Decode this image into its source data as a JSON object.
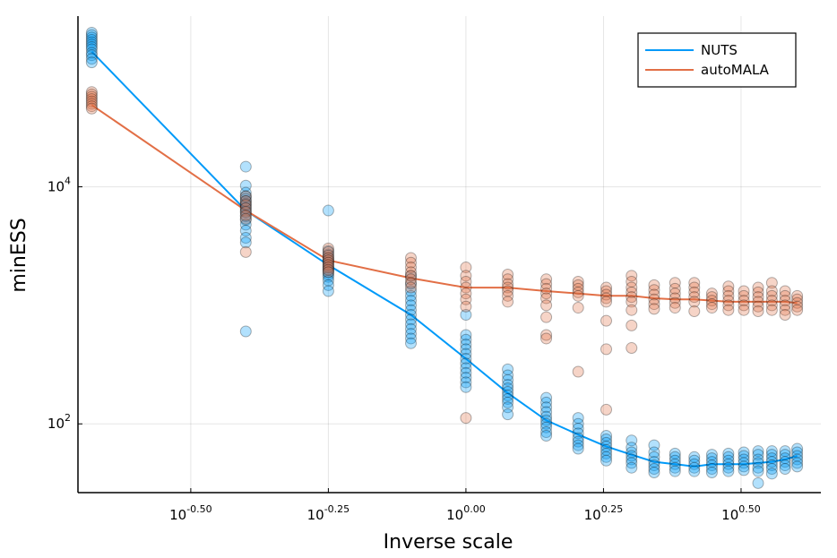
{
  "chart_data": {
    "type": "scatter",
    "title": "",
    "xlabel": "Inverse scale",
    "ylabel": "minESS",
    "xscale": "log10",
    "yscale": "log10",
    "xlim_log10": [
      -0.705,
      0.645
    ],
    "ylim_log10": [
      1.42,
      5.44
    ],
    "xticks": [
      {
        "exp": "-0.50",
        "base": "10",
        "log10": -0.5
      },
      {
        "exp": "-0.25",
        "base": "10",
        "log10": -0.25
      },
      {
        "exp": "0.00",
        "base": "10",
        "log10": 0.0
      },
      {
        "exp": "0.25",
        "base": "10",
        "log10": 0.25
      },
      {
        "exp": "0.50",
        "base": "10",
        "log10": 0.5
      }
    ],
    "yticks": [
      {
        "exp": "2",
        "base": "10",
        "log10": 2
      },
      {
        "exp": "4",
        "base": "10",
        "log10": 4
      }
    ],
    "grid": true,
    "legend_position": "top-right",
    "series": [
      {
        "name": "NUTS",
        "color": "#009af9",
        "line": [
          {
            "x": -0.68,
            "y": 5.14
          },
          {
            "x": -0.4,
            "y": 3.8
          },
          {
            "x": -0.25,
            "y": 3.34
          },
          {
            "x": -0.1,
            "y": 2.92
          },
          {
            "x": 0.0,
            "y": 2.55
          },
          {
            "x": 0.076,
            "y": 2.26
          },
          {
            "x": 0.146,
            "y": 2.03
          },
          {
            "x": 0.204,
            "y": 1.91
          },
          {
            "x": 0.255,
            "y": 1.81
          },
          {
            "x": 0.301,
            "y": 1.74
          },
          {
            "x": 0.342,
            "y": 1.68
          },
          {
            "x": 0.38,
            "y": 1.66
          },
          {
            "x": 0.415,
            "y": 1.64
          },
          {
            "x": 0.447,
            "y": 1.66
          },
          {
            "x": 0.477,
            "y": 1.66
          },
          {
            "x": 0.505,
            "y": 1.66
          },
          {
            "x": 0.531,
            "y": 1.67
          },
          {
            "x": 0.556,
            "y": 1.68
          },
          {
            "x": 0.58,
            "y": 1.7
          },
          {
            "x": 0.602,
            "y": 1.73
          }
        ],
        "scatter": [
          {
            "x": -0.68,
            "y": [
              5.3,
              5.28,
              5.26,
              5.24,
              5.22,
              5.2,
              5.18,
              5.16,
              5.13,
              5.11,
              5.08,
              5.05
            ]
          },
          {
            "x": -0.4,
            "y": [
              4.17,
              4.01,
              3.95,
              3.92,
              3.9,
              3.88,
              3.86,
              3.84,
              3.82,
              3.8,
              3.78,
              3.75,
              3.72,
              3.68,
              3.63,
              3.57,
              3.53,
              2.78
            ]
          },
          {
            "x": -0.25,
            "y": [
              3.8,
              3.46,
              3.43,
              3.4,
              3.38,
              3.36,
              3.34,
              3.32,
              3.3,
              3.28,
              3.26,
              3.24,
              3.21,
              3.17,
              3.12
            ]
          },
          {
            "x": -0.1,
            "y": [
              3.25,
              3.18,
              3.12,
              3.08,
              3.04,
              3.0,
              2.96,
              2.92,
              2.88,
              2.84,
              2.8,
              2.76,
              2.72,
              2.68
            ]
          },
          {
            "x": 0.0,
            "y": [
              2.92,
              2.75,
              2.71,
              2.67,
              2.63,
              2.59,
              2.55,
              2.51,
              2.47,
              2.43,
              2.39,
              2.35,
              2.31
            ]
          },
          {
            "x": 0.076,
            "y": [
              2.46,
              2.41,
              2.37,
              2.33,
              2.3,
              2.27,
              2.24,
              2.21,
              2.18,
              2.14,
              2.08
            ]
          },
          {
            "x": 0.146,
            "y": [
              2.22,
              2.18,
              2.14,
              2.1,
              2.06,
              2.03,
              2.0,
              1.97,
              1.93,
              1.9
            ]
          },
          {
            "x": 0.204,
            "y": [
              2.05,
              2.0,
              1.96,
              1.92,
              1.88,
              1.85,
              1.82,
              1.79
            ]
          },
          {
            "x": 0.255,
            "y": [
              1.9,
              1.87,
              1.84,
              1.81,
              1.78,
              1.75,
              1.72,
              1.69
            ]
          },
          {
            "x": 0.301,
            "y": [
              1.86,
              1.8,
              1.76,
              1.73,
              1.7,
              1.67,
              1.63
            ]
          },
          {
            "x": 0.342,
            "y": [
              1.82,
              1.76,
              1.72,
              1.68,
              1.65,
              1.62,
              1.59
            ]
          },
          {
            "x": 0.38,
            "y": [
              1.75,
              1.72,
              1.69,
              1.66,
              1.63,
              1.6
            ]
          },
          {
            "x": 0.415,
            "y": [
              1.72,
              1.69,
              1.66,
              1.63,
              1.6
            ]
          },
          {
            "x": 0.447,
            "y": [
              1.74,
              1.71,
              1.68,
              1.65,
              1.62,
              1.59
            ]
          },
          {
            "x": 0.477,
            "y": [
              1.75,
              1.72,
              1.69,
              1.66,
              1.63,
              1.6
            ]
          },
          {
            "x": 0.505,
            "y": [
              1.76,
              1.73,
              1.7,
              1.67,
              1.64,
              1.61
            ]
          },
          {
            "x": 0.531,
            "y": [
              1.77,
              1.74,
              1.7,
              1.67,
              1.63,
              1.6,
              1.5
            ]
          },
          {
            "x": 0.556,
            "y": [
              1.77,
              1.74,
              1.71,
              1.68,
              1.65,
              1.62,
              1.58
            ]
          },
          {
            "x": 0.58,
            "y": [
              1.77,
              1.74,
              1.71,
              1.68,
              1.65,
              1.62
            ]
          },
          {
            "x": 0.602,
            "y": [
              1.79,
              1.76,
              1.73,
              1.7,
              1.67,
              1.64
            ]
          }
        ]
      },
      {
        "name": "autoMALA",
        "color": "#e26f46",
        "line": [
          {
            "x": -0.68,
            "y": 4.69
          },
          {
            "x": -0.4,
            "y": 3.8
          },
          {
            "x": -0.25,
            "y": 3.38
          },
          {
            "x": -0.1,
            "y": 3.23
          },
          {
            "x": 0.0,
            "y": 3.15
          },
          {
            "x": 0.076,
            "y": 3.15
          },
          {
            "x": 0.146,
            "y": 3.12
          },
          {
            "x": 0.204,
            "y": 3.1
          },
          {
            "x": 0.255,
            "y": 3.08
          },
          {
            "x": 0.301,
            "y": 3.08
          },
          {
            "x": 0.342,
            "y": 3.06
          },
          {
            "x": 0.38,
            "y": 3.05
          },
          {
            "x": 0.415,
            "y": 3.05
          },
          {
            "x": 0.447,
            "y": 3.04
          },
          {
            "x": 0.477,
            "y": 3.03
          },
          {
            "x": 0.505,
            "y": 3.03
          },
          {
            "x": 0.531,
            "y": 3.03
          },
          {
            "x": 0.556,
            "y": 3.03
          },
          {
            "x": 0.58,
            "y": 3.03
          },
          {
            "x": 0.602,
            "y": 3.02
          }
        ],
        "scatter": [
          {
            "x": -0.68,
            "y": [
              4.8,
              4.78,
              4.76,
              4.74,
              4.72,
              4.7,
              4.68,
              4.66
            ]
          },
          {
            "x": -0.4,
            "y": [
              3.92,
              3.88,
              3.85,
              3.82,
              3.79,
              3.76,
              3.73,
              3.45
            ]
          },
          {
            "x": -0.25,
            "y": [
              3.48,
              3.45,
              3.42,
              3.4,
              3.38,
              3.36,
              3.34,
              3.32,
              3.3,
              3.28
            ]
          },
          {
            "x": -0.1,
            "y": [
              3.4,
              3.36,
              3.32,
              3.28,
              3.25,
              3.22,
              3.19,
              3.15
            ]
          },
          {
            "x": 0.0,
            "y": [
              3.32,
              3.25,
              3.2,
              3.15,
              3.1,
              3.05,
              2.99,
              2.05
            ]
          },
          {
            "x": 0.076,
            "y": [
              3.26,
              3.22,
              3.18,
              3.15,
              3.12,
              3.08,
              3.03
            ]
          },
          {
            "x": 0.146,
            "y": [
              3.22,
              3.18,
              3.14,
              3.1,
              3.06,
              3.0,
              2.9,
              2.75,
              2.72
            ]
          },
          {
            "x": 0.204,
            "y": [
              3.2,
              3.17,
              3.14,
              3.11,
              3.08,
              2.98,
              2.44
            ]
          },
          {
            "x": 0.255,
            "y": [
              3.15,
              3.12,
              3.09,
              3.06,
              3.03,
              2.87,
              2.63,
              2.12
            ]
          },
          {
            "x": 0.301,
            "y": [
              3.25,
              3.2,
              3.15,
              3.11,
              3.07,
              3.03,
              2.96,
              2.83,
              2.64
            ]
          },
          {
            "x": 0.342,
            "y": [
              3.17,
              3.13,
              3.09,
              3.05,
              3.01,
              2.97
            ]
          },
          {
            "x": 0.38,
            "y": [
              3.19,
              3.14,
              3.1,
              3.06,
              3.02,
              2.98
            ]
          },
          {
            "x": 0.415,
            "y": [
              3.19,
              3.15,
              3.11,
              3.07,
              3.03,
              2.95
            ]
          },
          {
            "x": 0.447,
            "y": [
              3.1,
              3.07,
              3.04,
              3.01,
              2.98
            ]
          },
          {
            "x": 0.477,
            "y": [
              3.16,
              3.12,
              3.08,
              3.04,
              3.0,
              2.96
            ]
          },
          {
            "x": 0.505,
            "y": [
              3.12,
              3.08,
              3.04,
              3.0,
              2.96
            ]
          },
          {
            "x": 0.531,
            "y": [
              3.15,
              3.11,
              3.07,
              3.03,
              2.99,
              2.95
            ]
          },
          {
            "x": 0.556,
            "y": [
              3.19,
              3.12,
              3.08,
              3.04,
              3.0,
              2.96
            ]
          },
          {
            "x": 0.58,
            "y": [
              3.12,
              3.08,
              3.04,
              3.0,
              2.96,
              2.92
            ]
          },
          {
            "x": 0.602,
            "y": [
              3.08,
              3.05,
              3.02,
              2.99,
              2.96
            ]
          }
        ]
      }
    ]
  }
}
